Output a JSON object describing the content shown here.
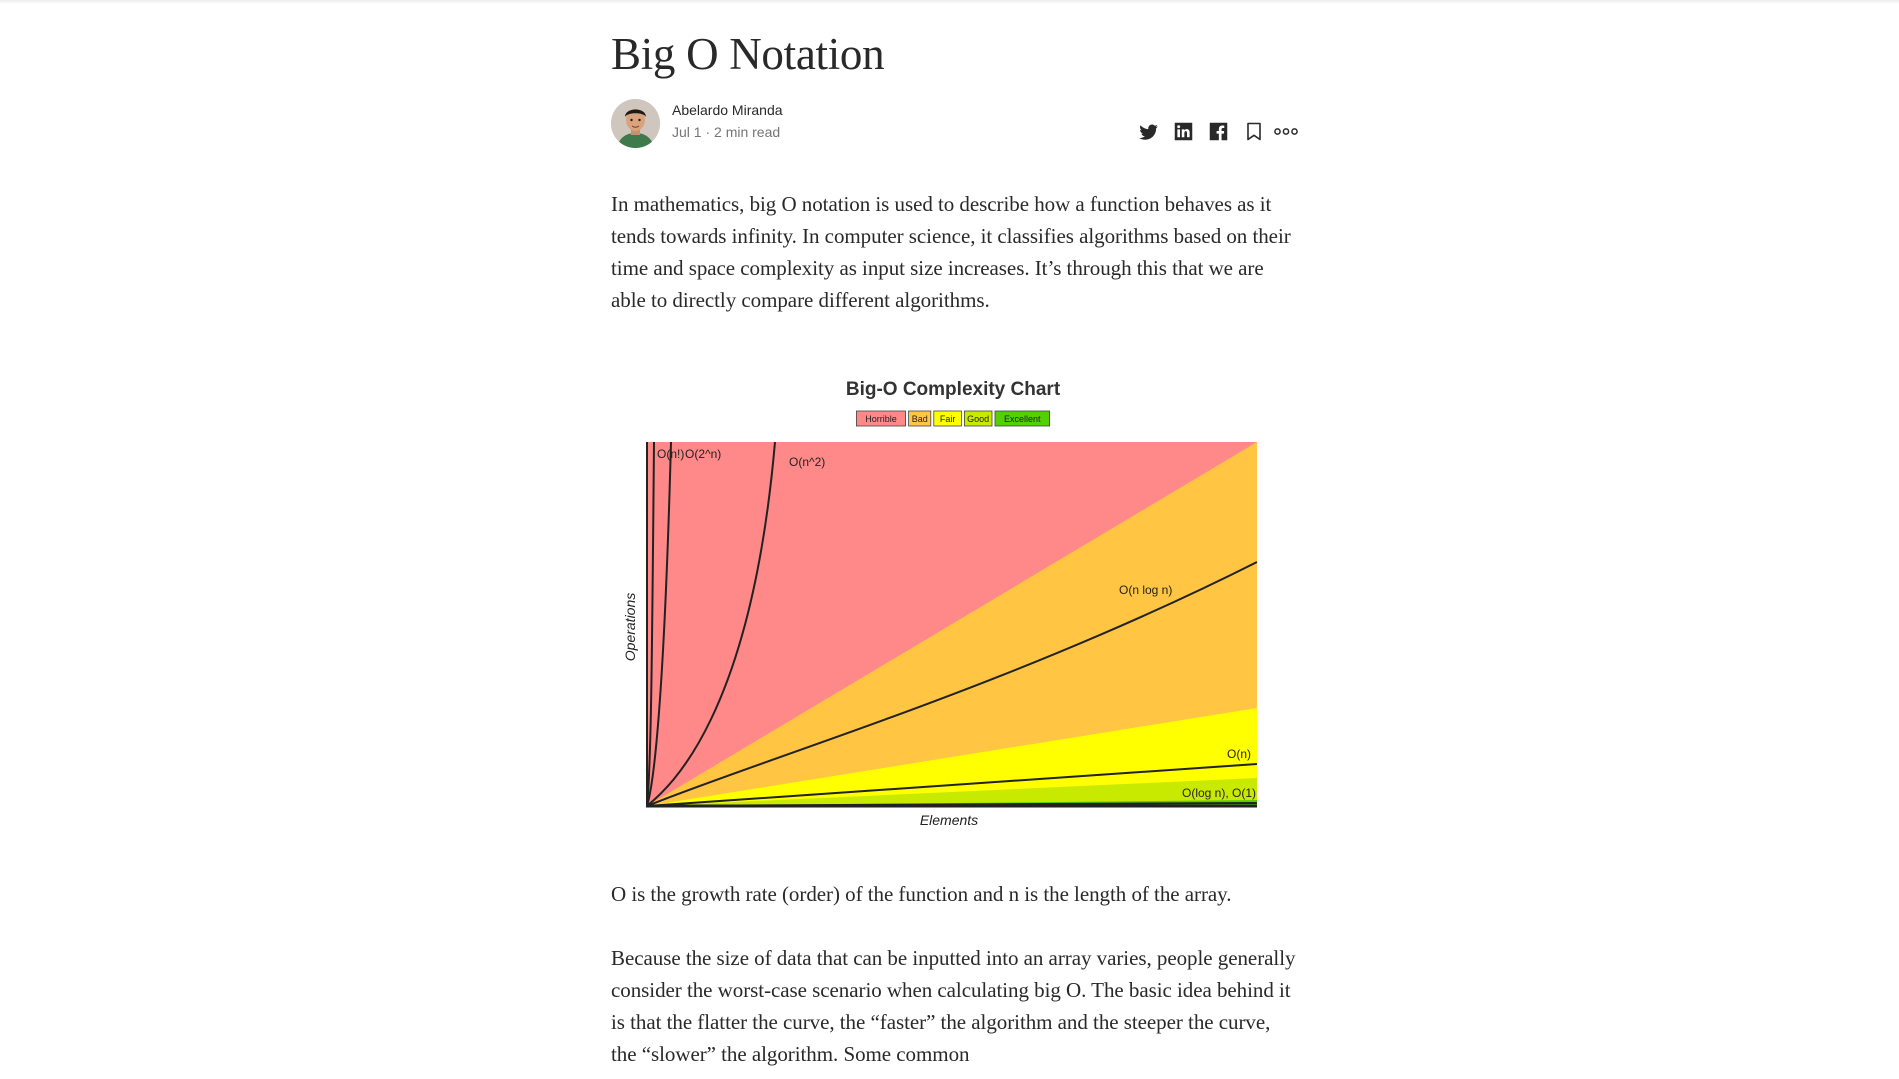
{
  "article": {
    "title": "Big O Notation",
    "author": {
      "name": "Abelardo Miranda",
      "meta": "Jul 1 · 2 min read"
    },
    "share_icons": [
      "twitter-icon",
      "linkedin-icon",
      "facebook-icon",
      "bookmark-icon",
      "more-icon"
    ],
    "paragraphs": [
      "In mathematics, big O notation is used to describe how a function behaves as it tends towards infinity. In computer science, it classifies algorithms based on their time and space complexity as input size increases. It’s through this that we are able to directly compare different algorithms.",
      "O is the growth rate (order) of the function and n is the length of the array.",
      "Because the size of data that can be inputted into an array varies, people generally consider the worst-case scenario when calculating big O. The basic idea behind it is that the flatter the curve, the “faster” the algorithm and the steeper the curve, the “slower” the algorithm. Some common"
    ]
  },
  "chart_data": {
    "type": "line",
    "title": "Big-O Complexity Chart",
    "xlabel": "Elements",
    "ylabel": "Operations",
    "legend": {
      "placement": "top-center",
      "entries": [
        {
          "label": "Horrible",
          "color": "#ff8989"
        },
        {
          "label": "Bad",
          "color": "#ffc543"
        },
        {
          "label": "Fair",
          "color": "#ffff00"
        },
        {
          "label": "Good",
          "color": "#c8ea00"
        },
        {
          "label": "Excellent",
          "color": "#53d000"
        }
      ]
    },
    "series": [
      {
        "name": "O(n!)"
      },
      {
        "name": "O(2^n)"
      },
      {
        "name": "O(n^2)"
      },
      {
        "name": "O(n log n)"
      },
      {
        "name": "O(n)"
      },
      {
        "name": "O(log n), O(1)"
      }
    ]
  }
}
